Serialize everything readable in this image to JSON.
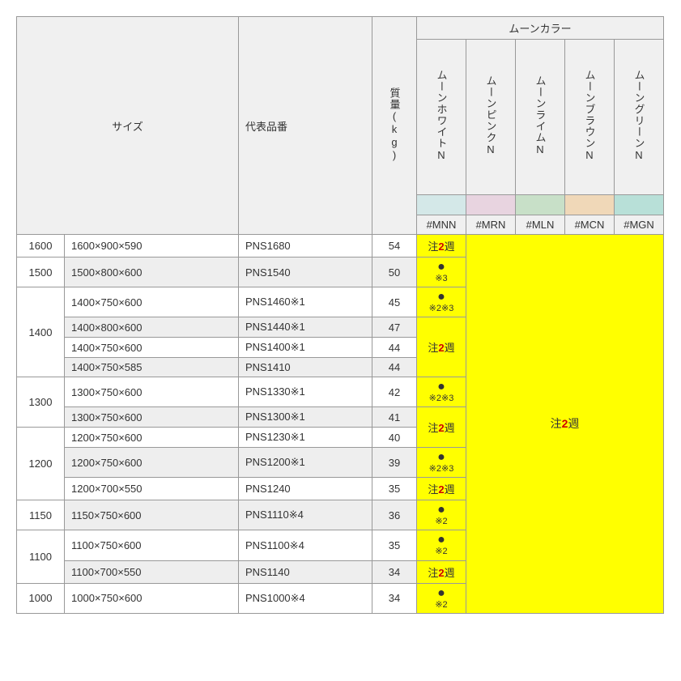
{
  "headers": {
    "size": "サイズ",
    "part": "代表品番",
    "weight": "質量(kg)",
    "moonColor": "ムーンカラー",
    "colorNames": [
      "ムーンホワイトN",
      "ムーンピンクN",
      "ムーンライムN",
      "ムーンブラウンN",
      "ムーングリーンN"
    ],
    "colorCodes": [
      "#MNN",
      "#MRN",
      "#MLN",
      "#MCN",
      "#MGN"
    ],
    "swatchColors": [
      "#d4e8e8",
      "#e8d4e0",
      "#c8e0c8",
      "#f0d8b8",
      "#b8e0d8"
    ]
  },
  "notes": {
    "chu2shu": "注2週",
    "dot23": "※2※3",
    "dot3": "※3",
    "dot2": "※2"
  },
  "rows": [
    {
      "sizeGroup": "1600",
      "rowspan": 1,
      "dim": "1600×900×590",
      "part": "PNS1680",
      "weight": "54",
      "mnn": "chu"
    },
    {
      "sizeGroup": "1500",
      "rowspan": 1,
      "dim": "1500×800×600",
      "part": "PNS1540",
      "weight": "50",
      "mnn": "dot3",
      "alt": true
    },
    {
      "sizeGroup": "1400",
      "rowspan": 4,
      "dim": "1400×750×600",
      "part": "PNS1460※1",
      "weight": "45",
      "mnn": "dot23"
    },
    {
      "dim": "1400×800×600",
      "part": "PNS1440※1",
      "weight": "47",
      "mnn": "chu_start",
      "alt": true
    },
    {
      "dim": "1400×750×600",
      "part": "PNS1400※1",
      "weight": "44",
      "mnn": "chu_cont"
    },
    {
      "dim": "1400×750×585",
      "part": "PNS1410",
      "weight": "44",
      "mnn": "chu_cont",
      "alt": true
    },
    {
      "sizeGroup": "1300",
      "rowspan": 2,
      "dim": "1300×750×600",
      "part": "PNS1330※1",
      "weight": "42",
      "mnn": "dot23"
    },
    {
      "dim": "1300×750×600",
      "part": "PNS1300※1",
      "weight": "41",
      "mnn": "chu_start2",
      "alt": true
    },
    {
      "sizeGroup": "1200",
      "rowspan": 3,
      "dim": "1200×750×600",
      "part": "PNS1230※1",
      "weight": "40",
      "mnn": "chu_cont2"
    },
    {
      "dim": "1200×750×600",
      "part": "PNS1200※1",
      "weight": "39",
      "mnn": "dot23",
      "alt": true
    },
    {
      "dim": "1200×700×550",
      "part": "PNS1240",
      "weight": "35",
      "mnn": "chu"
    },
    {
      "sizeGroup": "1150",
      "rowspan": 1,
      "dim": "1150×750×600",
      "part": "PNS1110※4",
      "weight": "36",
      "mnn": "dot2",
      "alt": true
    },
    {
      "sizeGroup": "1100",
      "rowspan": 2,
      "dim": "1100×750×600",
      "part": "PNS1100※4",
      "weight": "35",
      "mnn": "dot2"
    },
    {
      "dim": "1100×700×550",
      "part": "PNS1140",
      "weight": "34",
      "mnn": "chu",
      "alt": true
    },
    {
      "sizeGroup": "1000",
      "rowspan": 1,
      "dim": "1000×750×600",
      "part": "PNS1000※4",
      "weight": "34",
      "mnn": "dot2"
    }
  ]
}
